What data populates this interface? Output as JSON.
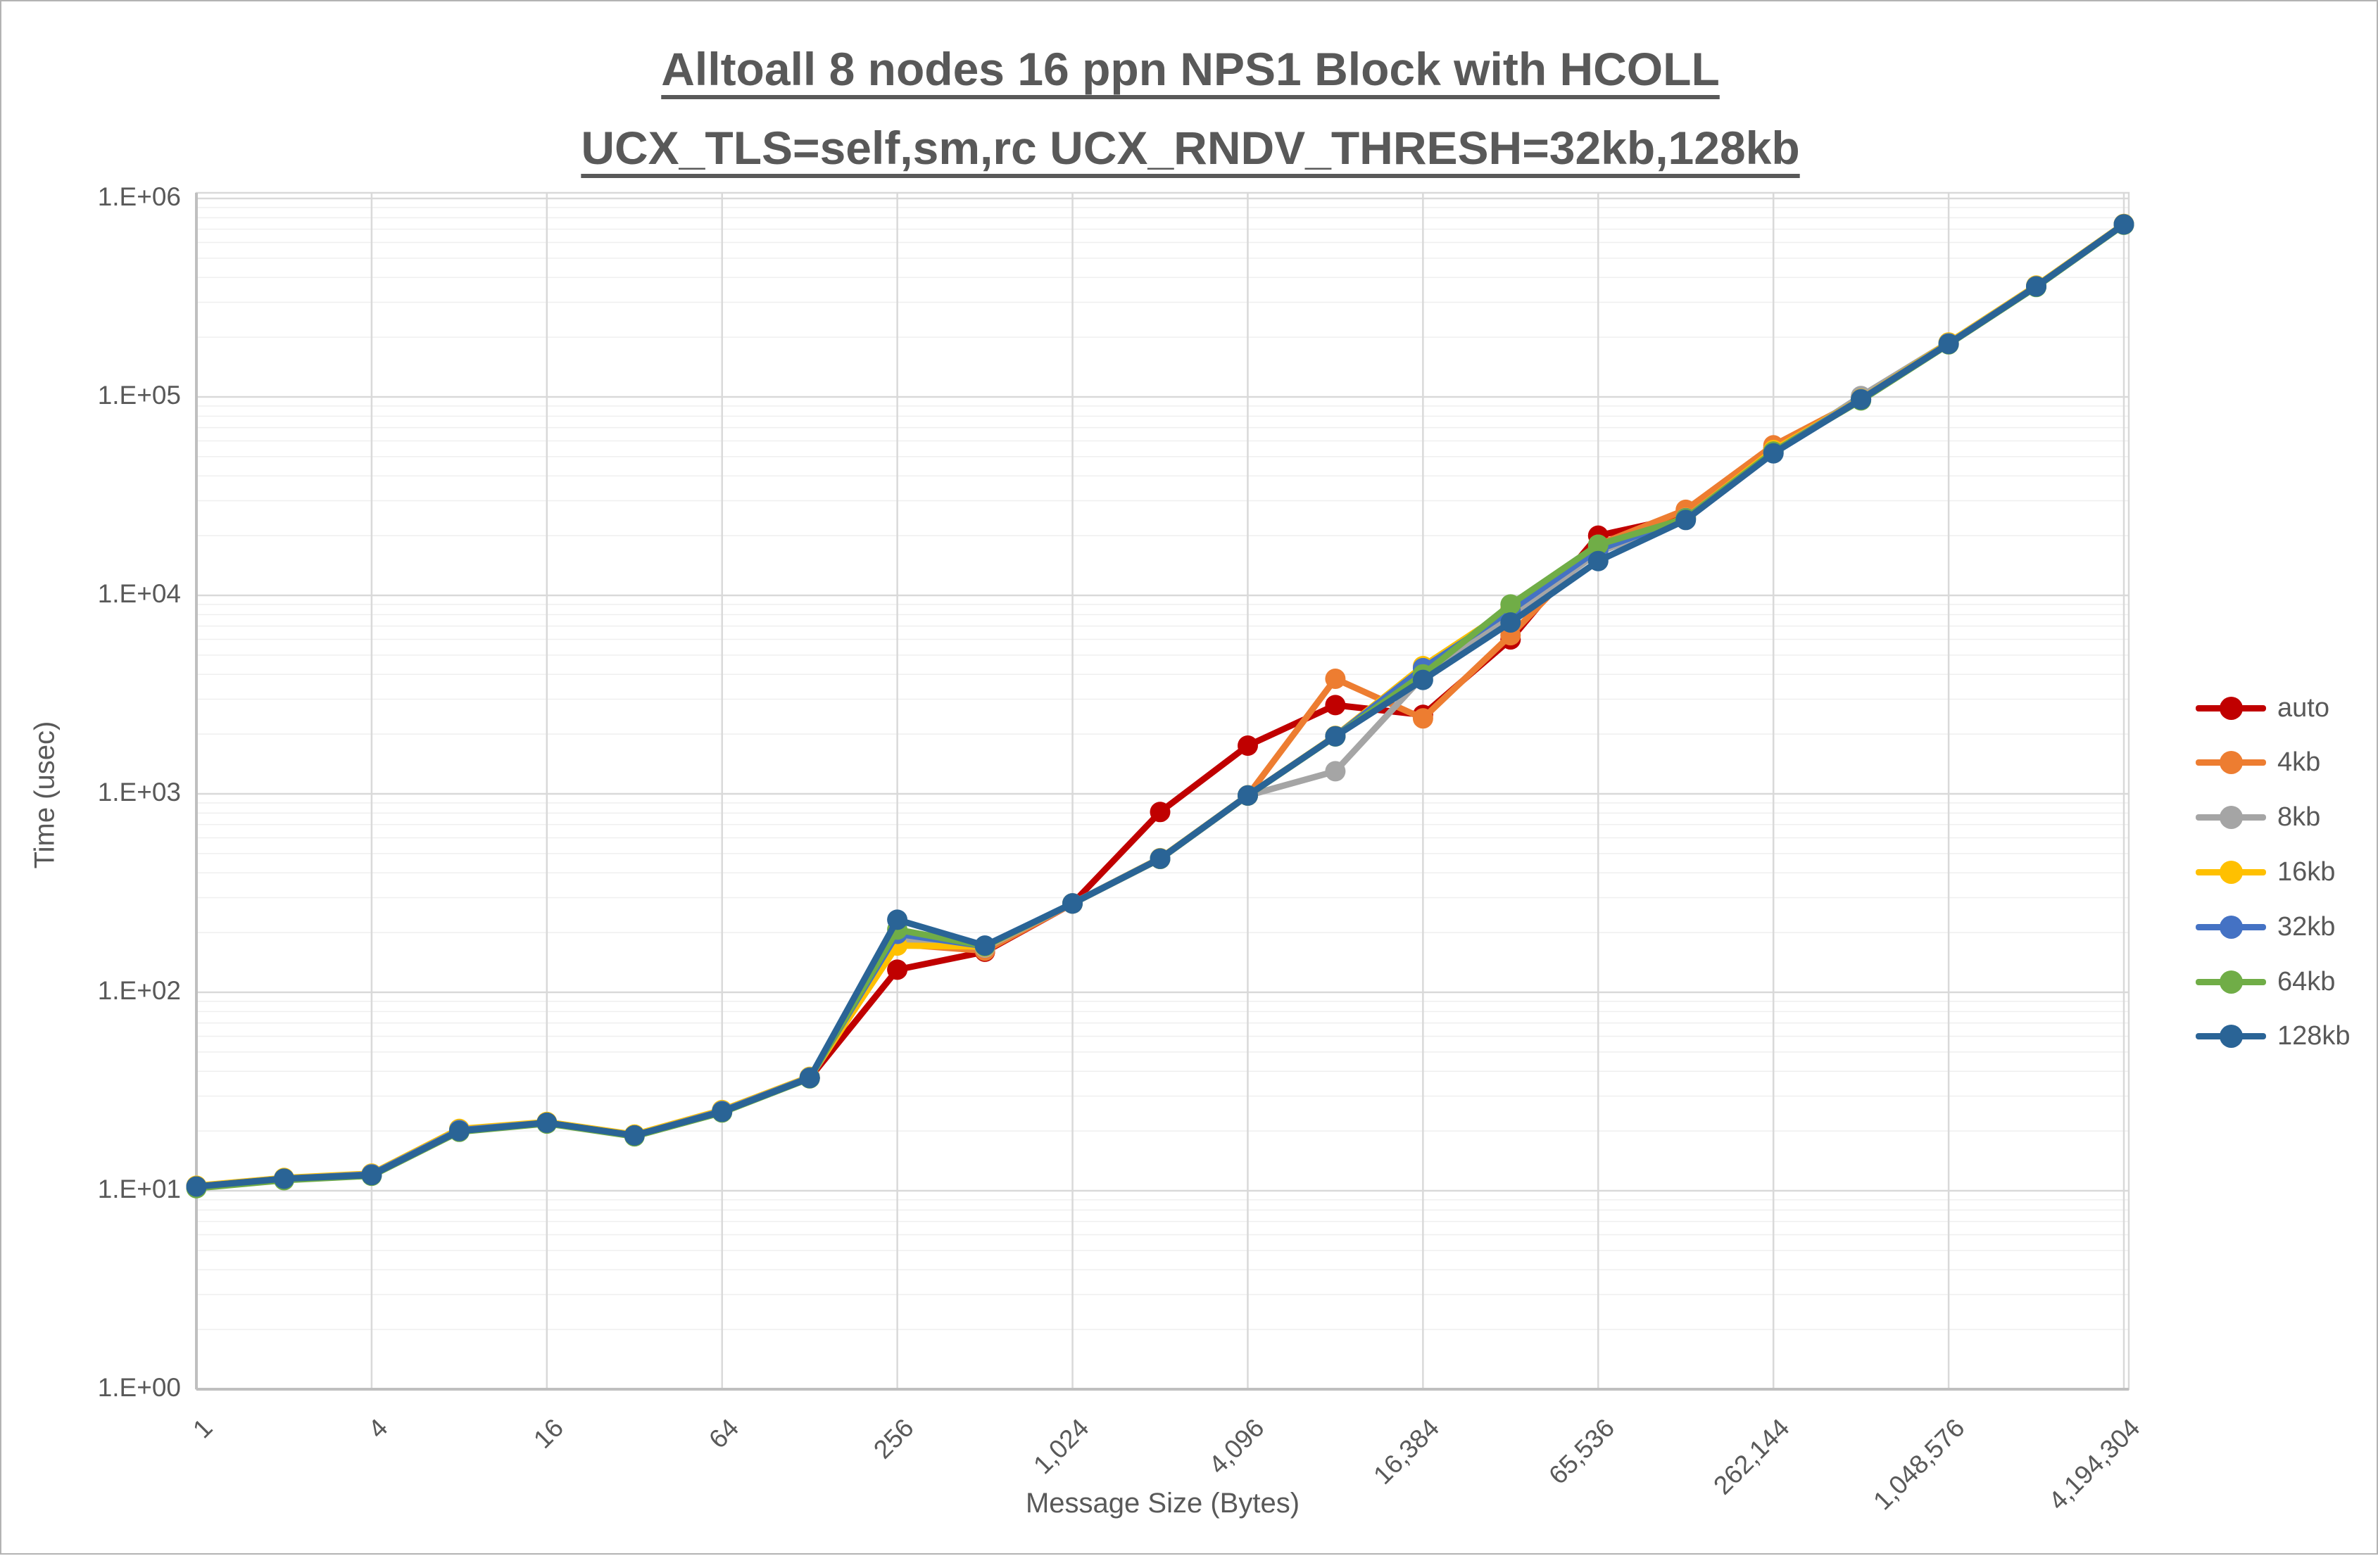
{
  "title": {
    "line1": "Alltoall 8 nodes 16 ppn NPS1 Block with HCOLL",
    "line2": "UCX_TLS=self,sm,rc UCX_RNDV_THRESH=32kb,128kb"
  },
  "axes": {
    "y": {
      "label": "Time (usec)",
      "tick_labels": [
        "1.E+00",
        "1.E+01",
        "1.E+02",
        "1.E+03",
        "1.E+04",
        "1.E+05",
        "1.E+06"
      ]
    },
    "x": {
      "label": "Message Size (Bytes)",
      "tick_labels": [
        "1",
        "4",
        "16",
        "64",
        "256",
        "1,024",
        "4,096",
        "16,384",
        "65,536",
        "262,144",
        "1,048,576",
        "4,194,304"
      ]
    }
  },
  "colors": {
    "text": "#595959",
    "grid_major": "#d9d9d9",
    "grid_minor": "#efefef",
    "axis_line": "#bfbfbf"
  },
  "chart_data": {
    "type": "line",
    "x_scale": "log2",
    "y_scale": "log10",
    "xlim": [
      1,
      4194304
    ],
    "ylim": [
      1,
      1000000
    ],
    "grid": "major+minor",
    "legend_position": "right",
    "title": "Alltoall 8 nodes 16 ppn NPS1 Block with HCOLL UCX_TLS=self,sm,rc UCX_RNDV_THRESH=32kb,128kb",
    "xlabel": "Message Size (Bytes)",
    "ylabel": "Time (usec)",
    "x_major_ticks": [
      1,
      4,
      16,
      64,
      256,
      1024,
      4096,
      16384,
      65536,
      262144,
      1048576,
      4194304
    ],
    "x": [
      1,
      2,
      4,
      8,
      16,
      32,
      64,
      128,
      256,
      512,
      1024,
      2048,
      4096,
      8192,
      16384,
      32768,
      65536,
      131072,
      262144,
      524288,
      1048576,
      2097152,
      4194304
    ],
    "series": [
      {
        "name": "auto",
        "color": "#C00000",
        "values": [
          10.5,
          11.5,
          12,
          20,
          22,
          19,
          25,
          37,
          130,
          160,
          280,
          810,
          1750,
          2800,
          2500,
          6000,
          20000,
          25000,
          55000,
          97000,
          185000,
          360000,
          740000
        ]
      },
      {
        "name": "4kb",
        "color": "#ED7D31",
        "values": [
          10.5,
          11.5,
          12,
          20,
          22,
          19,
          25,
          37,
          175,
          162,
          280,
          470,
          980,
          3800,
          2400,
          6300,
          18000,
          27000,
          57000,
          97000,
          185000,
          360000,
          740000
        ]
      },
      {
        "name": "8kb",
        "color": "#A5A5A5",
        "values": [
          10.4,
          11.4,
          12,
          20,
          22,
          19,
          25,
          37,
          182,
          168,
          280,
          470,
          980,
          1300,
          3900,
          7800,
          16500,
          24000,
          52000,
          101000,
          188000,
          360000,
          740000
        ]
      },
      {
        "name": "16kb",
        "color": "#FFC000",
        "values": [
          10.6,
          11.6,
          12.2,
          20.5,
          22.2,
          19.2,
          25.5,
          37.5,
          172,
          170,
          281,
          474,
          984,
          1960,
          4400,
          8600,
          17500,
          24600,
          54000,
          98000,
          188000,
          364000,
          744000
        ]
      },
      {
        "name": "32kb",
        "color": "#4472C4",
        "values": [
          10.5,
          11.5,
          12.1,
          20.2,
          22,
          19,
          25.2,
          37.2,
          197,
          171,
          281,
          472,
          982,
          1950,
          4300,
          8400,
          17000,
          24500,
          53000,
          97500,
          186000,
          361000,
          741000
        ]
      },
      {
        "name": "64kb",
        "color": "#70AD47",
        "values": [
          10.3,
          11.3,
          11.9,
          19.8,
          21.8,
          18.8,
          24.8,
          36.8,
          207,
          171,
          280,
          470,
          980,
          1945,
          4000,
          9000,
          18000,
          24400,
          53000,
          96000,
          184000,
          358000,
          737000
        ]
      },
      {
        "name": "128kb",
        "color": "#2A6496",
        "values": [
          10.5,
          11.5,
          12,
          20,
          22,
          19,
          25,
          37,
          232,
          172,
          280,
          471,
          981,
          1950,
          3750,
          7300,
          14900,
          24000,
          52000,
          97000,
          185000,
          360000,
          740000
        ]
      }
    ]
  }
}
